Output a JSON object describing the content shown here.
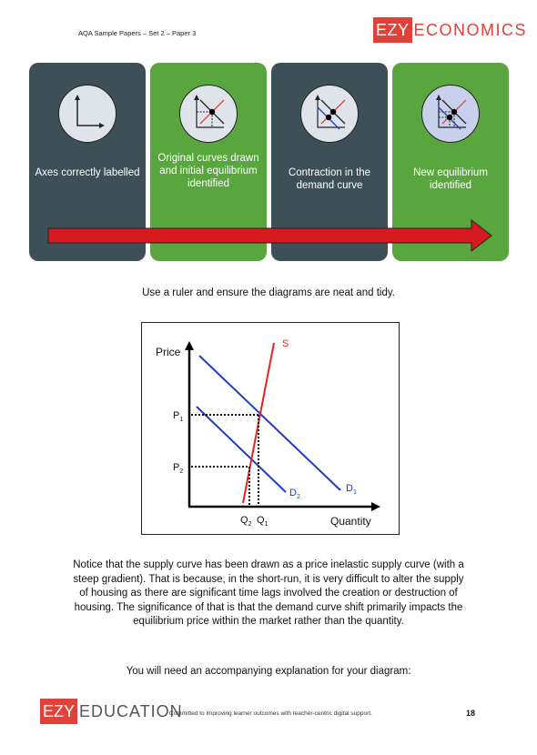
{
  "header": {
    "left_text": "AQA Sample Papers – Set 2 – Paper 3",
    "logo_box": "EZY",
    "logo_text": "ECONOMICS"
  },
  "steps": [
    {
      "label": "Axes correctly labelled"
    },
    {
      "label": "Original curves drawn and initial equilibrium identified"
    },
    {
      "label": "Contraction in the demand curve"
    },
    {
      "label": "New equilibrium identified"
    }
  ],
  "colors": {
    "dark_panel": "#3d4f57",
    "green_panel": "#5aa63e",
    "brand_red": "#e0423a",
    "arrow_red": "#d71920",
    "demand_blue": "#1f3cc8"
  },
  "ruler_note": "Use a ruler and ensure the diagrams are neat and tidy.",
  "diagram": {
    "y_label": "Price",
    "x_label": "Quantity",
    "p1": "P",
    "p1_sub": "1",
    "p2": "P",
    "p2_sub": "2",
    "q2": "Q",
    "q2_sub": "2",
    "q1": "Q",
    "q1_sub": "1",
    "supply_label": "S",
    "d1": "D",
    "d1_sub": "1",
    "d2": "D",
    "d2_sub": "2"
  },
  "paragraph": "Notice that the supply curve has been drawn as a price inelastic supply curve (with a steep gradient). That is because, in the short-run, it is very difficult to alter the supply of housing as there are significant time lags involved the creation or destruction of housing. The significance of that is that the demand curve shift primarily impacts the equilibrium price within the market rather than the quantity.",
  "explanation_prompt": "You will need an accompanying explanation for your diagram:",
  "footer": {
    "logo_box": "EZY",
    "logo_text": "EDUCATION",
    "tagline": "Committed to improving learner outcomes with teacher-centric digital support.",
    "page_number": "18"
  }
}
